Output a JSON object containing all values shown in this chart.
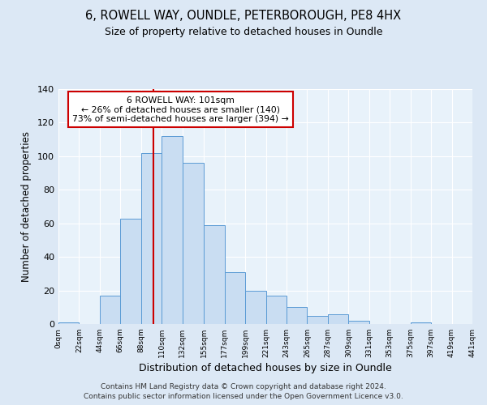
{
  "title1": "6, ROWELL WAY, OUNDLE, PETERBOROUGH, PE8 4HX",
  "title2": "Size of property relative to detached houses in Oundle",
  "xlabel": "Distribution of detached houses by size in Oundle",
  "ylabel": "Number of detached properties",
  "bin_labels": [
    "0sqm",
    "22sqm",
    "44sqm",
    "66sqm",
    "88sqm",
    "110sqm",
    "132sqm",
    "155sqm",
    "177sqm",
    "199sqm",
    "221sqm",
    "243sqm",
    "265sqm",
    "287sqm",
    "309sqm",
    "331sqm",
    "353sqm",
    "375sqm",
    "397sqm",
    "419sqm",
    "441sqm"
  ],
  "bin_edges": [
    0,
    22,
    44,
    66,
    88,
    110,
    132,
    155,
    177,
    199,
    221,
    243,
    265,
    287,
    309,
    331,
    353,
    375,
    397,
    419,
    441
  ],
  "bar_heights": [
    1,
    0,
    17,
    63,
    102,
    112,
    96,
    59,
    31,
    20,
    17,
    10,
    5,
    6,
    2,
    0,
    0,
    1,
    0,
    0
  ],
  "bar_color": "#c9ddf2",
  "bar_edge_color": "#5b9bd5",
  "vline_x": 101,
  "vline_color": "#cc0000",
  "annotation_text": "6 ROWELL WAY: 101sqm\n← 26% of detached houses are smaller (140)\n73% of semi-detached houses are larger (394) →",
  "annotation_box_color": "#ffffff",
  "annotation_box_edge": "#cc0000",
  "ylim": [
    0,
    140
  ],
  "yticks": [
    0,
    20,
    40,
    60,
    80,
    100,
    120,
    140
  ],
  "footer1": "Contains HM Land Registry data © Crown copyright and database right 2024.",
  "footer2": "Contains public sector information licensed under the Open Government Licence v3.0.",
  "bg_color": "#dce8f5",
  "plot_bg_color": "#e8f2fa"
}
